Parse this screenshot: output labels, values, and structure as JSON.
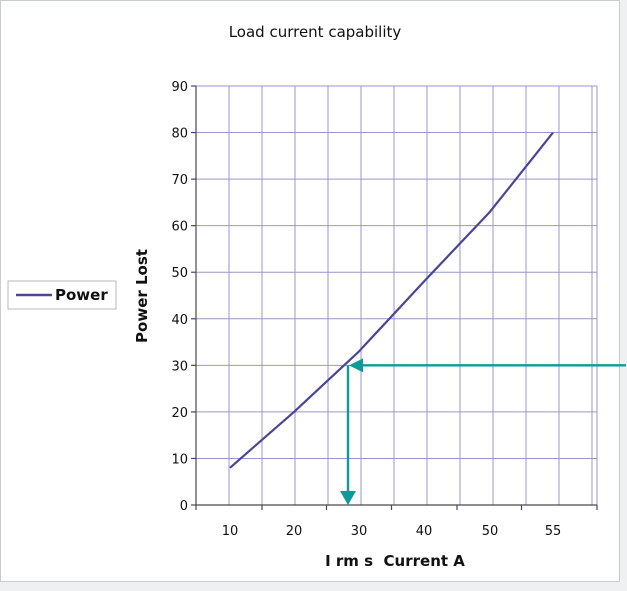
{
  "chart_data": {
    "type": "line",
    "title": "Load current capability",
    "xlabel": "I rm s  Current A",
    "ylabel": "Power Lost",
    "x_tick_labels": [
      "10",
      "20",
      "30",
      "40",
      "50",
      "55"
    ],
    "y_ticks": [
      0,
      10,
      20,
      30,
      40,
      50,
      60,
      70,
      80,
      90
    ],
    "ylim": [
      0,
      90
    ],
    "grid": true,
    "legend_position": "left",
    "series": [
      {
        "name": "Power",
        "color": "#4b4596",
        "points": [
          [
            10,
            8
          ],
          [
            20,
            20
          ],
          [
            30,
            33
          ],
          [
            40,
            48
          ],
          [
            50,
            63
          ],
          [
            55,
            80
          ]
        ]
      }
    ],
    "annotations": [
      {
        "type": "arrow",
        "description": "horizontal arrow from right edge to curve at y=30",
        "y": 30,
        "color": "#0f9a9a"
      },
      {
        "type": "arrow",
        "description": "vertical arrow from curve down to x-axis",
        "y_from": 30,
        "y_to": 0,
        "color": "#0f9a9a"
      }
    ]
  },
  "colors": {
    "grid": "#9a96c8",
    "axis": "#4a4a4a",
    "line": "#4b4596",
    "arrow": "#0f9a9a"
  }
}
